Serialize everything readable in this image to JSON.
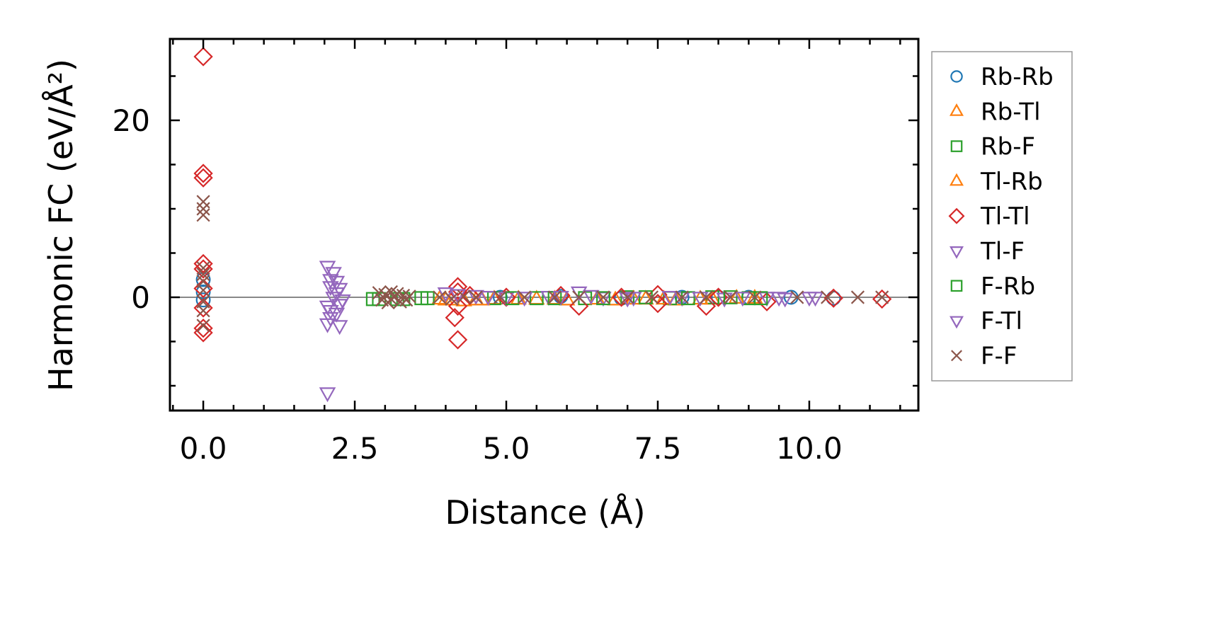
{
  "chart_data": {
    "type": "scatter",
    "title": "",
    "xlabel": "Distance (Å)",
    "ylabel": "Harmonic FC (eV/Å²)",
    "xlim": [
      -0.55,
      11.8
    ],
    "ylim": [
      -12.8,
      29.2
    ],
    "xticks": [
      0.0,
      2.5,
      5.0,
      7.5,
      10.0
    ],
    "xtick_labels": [
      "0.0",
      "2.5",
      "5.0",
      "7.5",
      "10.0"
    ],
    "yticks": [
      0,
      20
    ],
    "ytick_labels": [
      "0",
      "20"
    ],
    "legend_position": "outside-right",
    "series": [
      {
        "name": "Rb-Rb",
        "marker": "circle",
        "color": "#1f77b4",
        "points": [
          [
            0.0,
            2.0
          ],
          [
            0.0,
            0.6
          ],
          [
            0.0,
            -0.3
          ],
          [
            4.9,
            0.0
          ],
          [
            5.9,
            0.1
          ],
          [
            6.9,
            -0.1
          ],
          [
            7.9,
            0.0
          ],
          [
            8.5,
            0.0
          ],
          [
            9.0,
            0.0
          ],
          [
            9.7,
            0.0
          ],
          [
            10.4,
            -0.1
          ]
        ]
      },
      {
        "name": "Rb-Tl",
        "marker": "triangle-up",
        "color": "#ff7f0e",
        "points": [
          [
            3.9,
            -0.2
          ],
          [
            4.1,
            -0.3
          ],
          [
            4.5,
            -0.3
          ],
          [
            4.8,
            -0.2
          ],
          [
            5.5,
            -0.2
          ],
          [
            6.0,
            -0.3
          ],
          [
            6.8,
            -0.3
          ],
          [
            7.3,
            -0.2
          ],
          [
            7.8,
            -0.3
          ],
          [
            8.4,
            -0.2
          ],
          [
            9.1,
            -0.1
          ]
        ]
      },
      {
        "name": "Rb-F",
        "marker": "square",
        "color": "#2ca02c",
        "points": [
          [
            2.8,
            -0.2
          ],
          [
            3.2,
            -0.2
          ],
          [
            3.6,
            -0.1
          ],
          [
            4.8,
            -0.1
          ],
          [
            5.5,
            -0.1
          ],
          [
            6.3,
            -0.1
          ],
          [
            7.0,
            0.0
          ],
          [
            7.7,
            -0.1
          ],
          [
            8.4,
            0.0
          ],
          [
            9.0,
            -0.1
          ]
        ]
      },
      {
        "name": "Tl-Rb",
        "marker": "triangle-up",
        "color": "#ff7f0e",
        "points": [
          [
            4.0,
            -0.3
          ],
          [
            4.3,
            -0.4
          ],
          [
            4.6,
            -0.3
          ],
          [
            5.2,
            -0.2
          ],
          [
            5.8,
            -0.2
          ],
          [
            6.5,
            -0.2
          ],
          [
            7.1,
            -0.2
          ],
          [
            7.6,
            -0.2
          ],
          [
            8.2,
            -0.2
          ],
          [
            8.8,
            -0.1
          ]
        ]
      },
      {
        "name": "Tl-Tl",
        "marker": "diamond",
        "color": "#d62728",
        "points": [
          [
            0.0,
            27.2
          ],
          [
            0.0,
            14.0
          ],
          [
            0.0,
            13.5
          ],
          [
            0.0,
            3.8
          ],
          [
            0.0,
            3.2
          ],
          [
            0.0,
            1.0
          ],
          [
            0.0,
            -1.2
          ],
          [
            0.0,
            -3.5
          ],
          [
            0.0,
            -4.0
          ],
          [
            4.2,
            1.2
          ],
          [
            4.2,
            0.6
          ],
          [
            4.2,
            -1.0
          ],
          [
            4.15,
            -2.3
          ],
          [
            4.2,
            -4.8
          ],
          [
            4.4,
            0.2
          ],
          [
            5.0,
            0.0
          ],
          [
            5.9,
            0.2
          ],
          [
            6.2,
            -1.0
          ],
          [
            6.9,
            0.0
          ],
          [
            7.5,
            0.3
          ],
          [
            7.5,
            -0.7
          ],
          [
            8.3,
            -1.0
          ],
          [
            8.5,
            0.0
          ],
          [
            9.3,
            -0.5
          ],
          [
            10.4,
            -0.1
          ],
          [
            11.2,
            -0.2
          ]
        ]
      },
      {
        "name": "Tl-F",
        "marker": "triangle-down",
        "color": "#9467bd",
        "points": [
          [
            2.05,
            3.5
          ],
          [
            2.1,
            1.2
          ],
          [
            2.05,
            -1.0
          ],
          [
            2.1,
            -2.3
          ],
          [
            2.05,
            -3.0
          ],
          [
            2.05,
            -10.8
          ],
          [
            2.2,
            1.8
          ],
          [
            2.2,
            0.5
          ],
          [
            2.25,
            -0.8
          ],
          [
            2.2,
            -1.8
          ],
          [
            2.25,
            -3.2
          ],
          [
            2.15,
            2.8
          ],
          [
            4.0,
            0.5
          ],
          [
            4.5,
            0.2
          ],
          [
            5.0,
            0.0
          ],
          [
            5.7,
            0.1
          ],
          [
            6.2,
            0.6
          ],
          [
            6.6,
            0.0
          ],
          [
            7.0,
            -0.1
          ],
          [
            7.9,
            0.0
          ],
          [
            8.6,
            -0.1
          ],
          [
            9.3,
            0.0
          ],
          [
            9.6,
            -0.1
          ],
          [
            10.1,
            0.0
          ]
        ]
      },
      {
        "name": "F-Rb",
        "marker": "square",
        "color": "#2ca02c",
        "points": [
          [
            2.9,
            -0.2
          ],
          [
            3.3,
            -0.2
          ],
          [
            3.7,
            -0.1
          ],
          [
            5.1,
            -0.1
          ],
          [
            5.8,
            -0.1
          ],
          [
            6.6,
            -0.1
          ],
          [
            7.3,
            0.0
          ],
          [
            8.0,
            -0.1
          ],
          [
            8.7,
            0.0
          ],
          [
            9.2,
            -0.1
          ]
        ]
      },
      {
        "name": "F-Tl",
        "marker": "triangle-down",
        "color": "#9467bd",
        "points": [
          [
            2.1,
            2.0
          ],
          [
            2.15,
            0.0
          ],
          [
            2.1,
            -1.5
          ],
          [
            2.3,
            -0.3
          ],
          [
            2.25,
            1.0
          ],
          [
            4.2,
            0.3
          ],
          [
            4.7,
            0.1
          ],
          [
            5.3,
            0.0
          ],
          [
            5.9,
            0.1
          ],
          [
            6.4,
            0.2
          ],
          [
            7.1,
            0.0
          ],
          [
            7.7,
            0.1
          ],
          [
            8.2,
            0.0
          ],
          [
            8.9,
            0.0
          ],
          [
            9.5,
            0.0
          ],
          [
            10.0,
            0.0
          ]
        ]
      },
      {
        "name": "F-F",
        "marker": "x",
        "color": "#8c564b",
        "points": [
          [
            0.0,
            10.8
          ],
          [
            0.0,
            10.0
          ],
          [
            0.0,
            9.3
          ],
          [
            0.0,
            3.3
          ],
          [
            0.0,
            2.6
          ],
          [
            0.0,
            1.8
          ],
          [
            0.0,
            0.8
          ],
          [
            0.0,
            -0.5
          ],
          [
            0.0,
            -1.5
          ],
          [
            0.0,
            -3.2
          ],
          [
            2.9,
            0.5
          ],
          [
            2.95,
            -0.3
          ],
          [
            3.0,
            0.3
          ],
          [
            3.05,
            -0.6
          ],
          [
            3.1,
            0.6
          ],
          [
            3.1,
            -0.2
          ],
          [
            3.15,
            0.0
          ],
          [
            3.2,
            0.4
          ],
          [
            3.25,
            -0.5
          ],
          [
            3.3,
            0.2
          ],
          [
            3.35,
            -0.3
          ],
          [
            3.4,
            0.1
          ],
          [
            3.9,
            0.0
          ],
          [
            4.1,
            -0.2
          ],
          [
            4.3,
            0.1
          ],
          [
            4.5,
            0.0
          ],
          [
            4.9,
            0.0
          ],
          [
            5.3,
            0.0
          ],
          [
            5.8,
            0.0
          ],
          [
            6.2,
            0.0
          ],
          [
            6.6,
            0.0
          ],
          [
            7.0,
            0.0
          ],
          [
            7.4,
            0.0
          ],
          [
            7.9,
            0.0
          ],
          [
            8.3,
            0.0
          ],
          [
            8.7,
            0.0
          ],
          [
            9.1,
            0.0
          ],
          [
            9.8,
            0.0
          ],
          [
            10.3,
            0.0
          ],
          [
            10.8,
            0.0
          ],
          [
            11.2,
            0.0
          ]
        ]
      }
    ]
  }
}
